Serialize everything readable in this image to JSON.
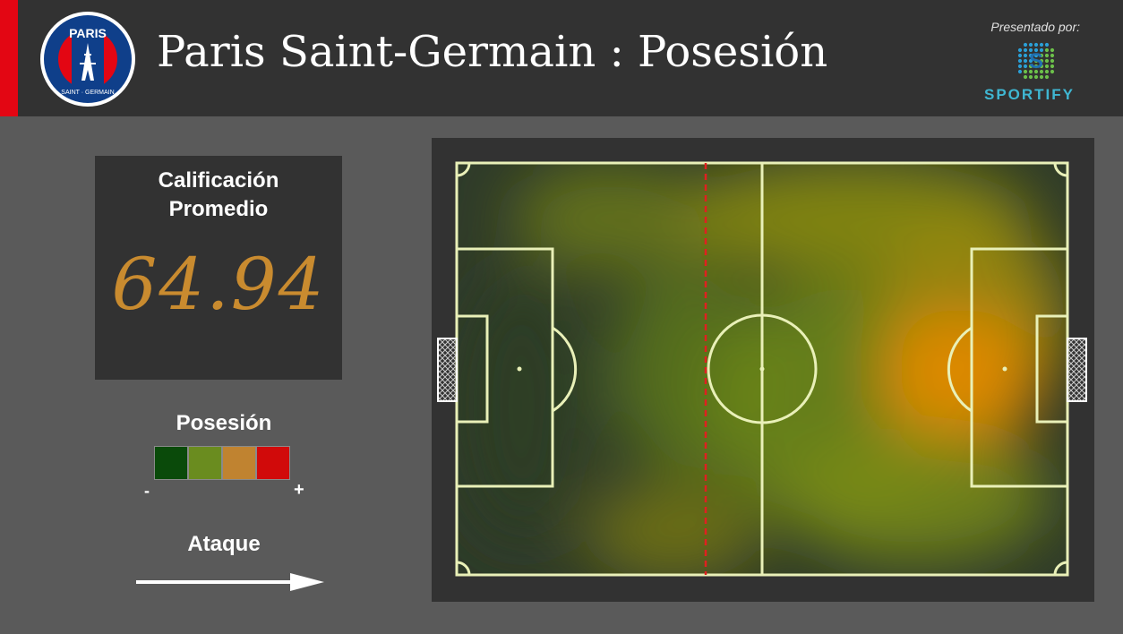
{
  "header": {
    "team_name": "Paris Saint-Germain",
    "separator": ":",
    "subtitle": "Posesión",
    "presented_by": "Presentado por:",
    "sponsor": "SPORTIFY",
    "logo_text_top": "PARIS",
    "logo_text_bottom": "SAINT · GERMAIN",
    "accent_color": "#e30613"
  },
  "rating": {
    "label_line1": "Calificación",
    "label_line2": "Promedio",
    "value": "64.94",
    "value_color": "#c98b2f"
  },
  "legend": {
    "title": "Posesión",
    "colors": [
      "#0a4a0a",
      "#6a8c1f",
      "#c08330",
      "#d10a0a"
    ],
    "min_label": "-",
    "max_label": "+"
  },
  "attack": {
    "label": "Ataque",
    "direction": "right"
  },
  "pitch": {
    "grass_color": "#2f3b2a",
    "line_color": "#e9f0b8",
    "third_marker_color": "#e02020"
  }
}
